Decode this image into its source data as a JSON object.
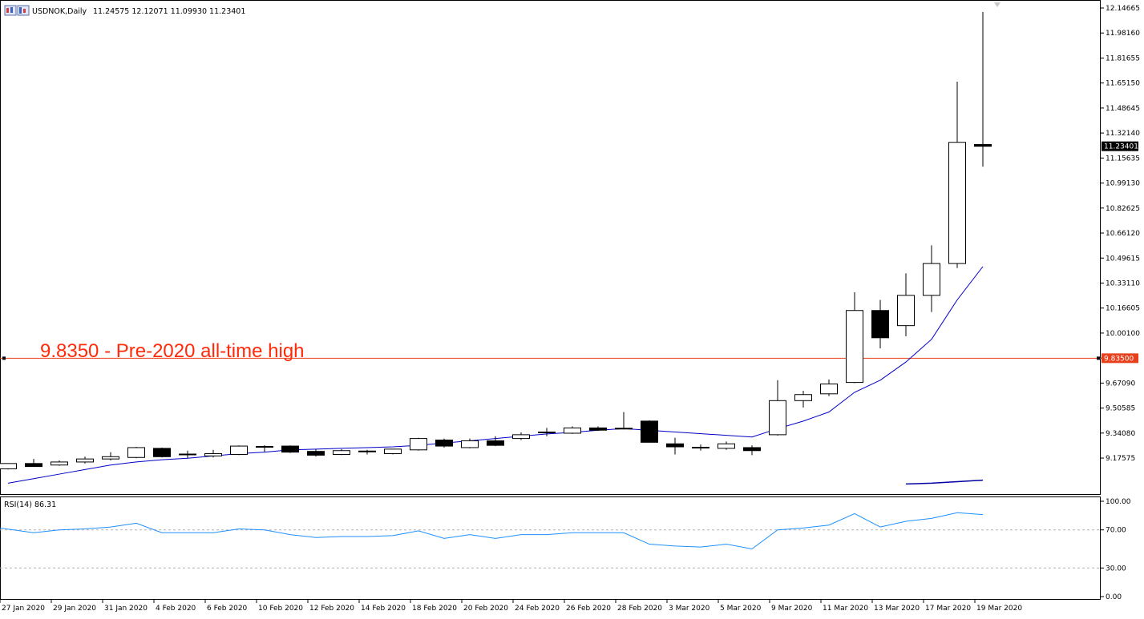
{
  "header": {
    "symbol": "USDNOK,Daily",
    "ohlc": "11.24575 12.12071 11.09930 11.23401"
  },
  "annotation": "9.8350 - Pre-2020 all-time high",
  "colors": {
    "bull": "#ffffff",
    "bear": "#000000",
    "ma": "#0000c8",
    "level": "#e8401c",
    "annotation": "#ff2a0a",
    "rsi": "#1e90ff",
    "level_label_bg": "#e8401c",
    "price_label_bg": "#000000"
  },
  "chart_data": [
    {
      "type": "candlestick",
      "title": "USDNOK,Daily",
      "x": [
        "27 Jan 2020",
        "28 Jan 2020",
        "29 Jan 2020",
        "30 Jan 2020",
        "31 Jan 2020",
        "3 Feb 2020",
        "4 Feb 2020",
        "5 Feb 2020",
        "6 Feb 2020",
        "7 Feb 2020",
        "10 Feb 2020",
        "11 Feb 2020",
        "12 Feb 2020",
        "13 Feb 2020",
        "14 Feb 2020",
        "17 Feb 2020",
        "18 Feb 2020",
        "19 Feb 2020",
        "20 Feb 2020",
        "21 Feb 2020",
        "24 Feb 2020",
        "25 Feb 2020",
        "26 Feb 2020",
        "27 Feb 2020",
        "28 Feb 2020",
        "2 Mar 2020",
        "3 Mar 2020",
        "4 Mar 2020",
        "5 Mar 2020",
        "6 Mar 2020",
        "9 Mar 2020",
        "10 Mar 2020",
        "11 Mar 2020",
        "12 Mar 2020",
        "13 Mar 2020",
        "16 Mar 2020",
        "17 Mar 2020",
        "18 Mar 2020",
        "19 Mar 2020"
      ],
      "xticks": [
        "27 Jan 2020",
        "29 Jan 2020",
        "31 Jan 2020",
        "4 Feb 2020",
        "6 Feb 2020",
        "10 Feb 2020",
        "12 Feb 2020",
        "14 Feb 2020",
        "18 Feb 2020",
        "20 Feb 2020",
        "24 Feb 2020",
        "26 Feb 2020",
        "28 Feb 2020",
        "3 Mar 2020",
        "5 Mar 2020",
        "9 Mar 2020",
        "11 Mar 2020",
        "13 Mar 2020",
        "17 Mar 2020",
        "19 Mar 2020"
      ],
      "candles": [
        {
          "o": 9.105,
          "h": 9.14,
          "l": 9.1,
          "c": 9.14
        },
        {
          "o": 9.14,
          "h": 9.17,
          "l": 9.12,
          "c": 9.12
        },
        {
          "o": 9.13,
          "h": 9.16,
          "l": 9.125,
          "c": 9.15
        },
        {
          "o": 9.15,
          "h": 9.185,
          "l": 9.14,
          "c": 9.17
        },
        {
          "o": 9.17,
          "h": 9.215,
          "l": 9.16,
          "c": 9.185
        },
        {
          "o": 9.18,
          "h": 9.25,
          "l": 9.175,
          "c": 9.245
        },
        {
          "o": 9.24,
          "h": 9.245,
          "l": 9.18,
          "c": 9.185
        },
        {
          "o": 9.2,
          "h": 9.225,
          "l": 9.175,
          "c": 9.2
        },
        {
          "o": 9.19,
          "h": 9.23,
          "l": 9.18,
          "c": 9.205
        },
        {
          "o": 9.2,
          "h": 9.26,
          "l": 9.195,
          "c": 9.255
        },
        {
          "o": 9.25,
          "h": 9.26,
          "l": 9.215,
          "c": 9.25
        },
        {
          "o": 9.255,
          "h": 9.26,
          "l": 9.21,
          "c": 9.215
        },
        {
          "o": 9.22,
          "h": 9.235,
          "l": 9.185,
          "c": 9.195
        },
        {
          "o": 9.2,
          "h": 9.235,
          "l": 9.195,
          "c": 9.225
        },
        {
          "o": 9.22,
          "h": 9.23,
          "l": 9.2,
          "c": 9.215
        },
        {
          "o": 9.205,
          "h": 9.235,
          "l": 9.2,
          "c": 9.235
        },
        {
          "o": 9.23,
          "h": 9.31,
          "l": 9.225,
          "c": 9.305
        },
        {
          "o": 9.295,
          "h": 9.305,
          "l": 9.245,
          "c": 9.255
        },
        {
          "o": 9.245,
          "h": 9.305,
          "l": 9.24,
          "c": 9.29
        },
        {
          "o": 9.29,
          "h": 9.32,
          "l": 9.255,
          "c": 9.26
        },
        {
          "o": 9.305,
          "h": 9.345,
          "l": 9.295,
          "c": 9.33
        },
        {
          "o": 9.345,
          "h": 9.375,
          "l": 9.32,
          "c": 9.34
        },
        {
          "o": 9.34,
          "h": 9.385,
          "l": 9.335,
          "c": 9.375
        },
        {
          "o": 9.375,
          "h": 9.385,
          "l": 9.355,
          "c": 9.36
        },
        {
          "o": 9.37,
          "h": 9.48,
          "l": 9.365,
          "c": 9.365
        },
        {
          "o": 9.42,
          "h": 9.425,
          "l": 9.28,
          "c": 9.28
        },
        {
          "o": 9.27,
          "h": 9.31,
          "l": 9.2,
          "c": 9.25
        },
        {
          "o": 9.24,
          "h": 9.265,
          "l": 9.225,
          "c": 9.245
        },
        {
          "o": 9.24,
          "h": 9.285,
          "l": 9.23,
          "c": 9.27
        },
        {
          "o": 9.245,
          "h": 9.26,
          "l": 9.195,
          "c": 9.225
        },
        {
          "o": 9.33,
          "h": 9.69,
          "l": 9.325,
          "c": 9.555
        },
        {
          "o": 9.555,
          "h": 9.62,
          "l": 9.51,
          "c": 9.595
        },
        {
          "o": 9.6,
          "h": 9.695,
          "l": 9.585,
          "c": 9.665
        },
        {
          "o": 9.675,
          "h": 10.27,
          "l": 9.67,
          "c": 10.15
        },
        {
          "o": 10.15,
          "h": 10.22,
          "l": 9.9,
          "c": 9.97
        },
        {
          "o": 10.05,
          "h": 10.395,
          "l": 9.98,
          "c": 10.25
        },
        {
          "o": 10.25,
          "h": 10.58,
          "l": 10.14,
          "c": 10.46
        },
        {
          "o": 10.46,
          "h": 11.66,
          "l": 10.43,
          "c": 11.26
        },
        {
          "o": 11.24575,
          "h": 12.12071,
          "l": 11.0993,
          "c": 11.23401
        }
      ],
      "ma": [
        9.01,
        9.04,
        9.07,
        9.1,
        9.13,
        9.15,
        9.165,
        9.175,
        9.19,
        9.205,
        9.215,
        9.23,
        9.235,
        9.24,
        9.245,
        9.25,
        9.26,
        9.275,
        9.29,
        9.305,
        9.32,
        9.335,
        9.345,
        9.36,
        9.37,
        null,
        null,
        null,
        null,
        9.315,
        9.37,
        9.42,
        9.48,
        9.61,
        9.69,
        9.81,
        9.96,
        10.22,
        10.44
      ],
      "ma_bottom": [
        {
          "i": 35,
          "v": 9.005
        },
        {
          "i": 36,
          "v": 9.01
        },
        {
          "i": 37,
          "v": 9.02
        },
        {
          "i": 38,
          "v": 9.03
        }
      ],
      "current_price": "11.23401",
      "level": {
        "value": 9.835,
        "label": "9.83500"
      },
      "ylim": [
        9.0915,
        12.1466
      ],
      "yticks": [
        "12.14665",
        "11.98160",
        "11.81655",
        "11.65150",
        "11.48645",
        "11.32140",
        "11.15635",
        "10.99130",
        "10.82625",
        "10.66120",
        "10.49615",
        "10.33110",
        "10.16605",
        "10.00100",
        "9.83595",
        "9.67090",
        "9.50585",
        "9.34080",
        "9.17575"
      ]
    },
    {
      "type": "line",
      "title": "RSI(14) 86.31",
      "values": [
        72,
        67,
        70,
        71,
        73,
        77,
        67,
        67,
        67,
        71,
        70,
        65,
        62,
        63,
        63,
        64,
        69,
        61,
        65,
        61,
        65,
        65,
        67,
        67,
        67,
        55,
        53,
        52,
        55,
        50,
        70,
        72,
        75,
        87,
        73,
        79,
        82,
        88,
        86
      ],
      "ylim": [
        0,
        100
      ],
      "levels": [
        70,
        30
      ],
      "yticks": [
        "100.00",
        "70.00",
        "30.00",
        "0.00"
      ]
    }
  ]
}
